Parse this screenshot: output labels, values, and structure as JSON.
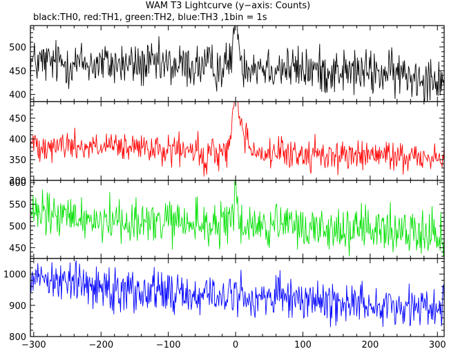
{
  "title": "WAM T3 Lightcurve (y−axis: Counts)",
  "subtitle": "black:TH0, red:TH1, green:TH2, blue:TH3 ,1bin = 1s",
  "chart_data": [
    {
      "type": "line",
      "name": "TH0",
      "color": "#000000",
      "xlim": [
        -305,
        310
      ],
      "ylim": [
        385,
        545
      ],
      "xticks": [
        -300,
        -200,
        -100,
        0,
        100,
        200,
        300
      ],
      "yticks": [
        400,
        450,
        500
      ],
      "ytick_labels": [
        "400",
        "450",
        "500"
      ],
      "baseline": [
        [
          -300,
          468
        ],
        [
          -150,
          462
        ],
        [
          -20,
          458
        ],
        [
          0,
          466
        ],
        [
          100,
          452
        ],
        [
          200,
          446
        ],
        [
          310,
          436
        ]
      ],
      "noise_amplitude": 24,
      "features": [
        {
          "x": 0,
          "y": 536,
          "width_s": 4
        },
        {
          "x": 1,
          "y": 545,
          "width_s": 2
        }
      ]
    },
    {
      "type": "line",
      "name": "TH1",
      "color": "#ff0000",
      "xlim": [
        -305,
        310
      ],
      "ylim": [
        300,
        490
      ],
      "xticks": [
        -300,
        -200,
        -100,
        0,
        100,
        200,
        300
      ],
      "yticks": [
        300,
        350,
        400,
        450
      ],
      "ytick_labels": [
        "300",
        "350",
        "400",
        "450"
      ],
      "baseline": [
        [
          -300,
          388
        ],
        [
          -200,
          380
        ],
        [
          -100,
          372
        ],
        [
          0,
          366
        ],
        [
          100,
          362
        ],
        [
          200,
          360
        ],
        [
          310,
          356
        ]
      ],
      "noise_amplitude": 18,
      "features": [
        {
          "x": 0,
          "y": 485,
          "width_s": 4
        },
        {
          "x": 8,
          "y": 420,
          "width_s": 10
        },
        {
          "x": -45,
          "y": 318,
          "width_s": 2
        }
      ]
    },
    {
      "type": "line",
      "name": "TH2",
      "color": "#00e000",
      "xlim": [
        -305,
        310
      ],
      "ylim": [
        425,
        605
      ],
      "xticks": [
        -300,
        -200,
        -100,
        0,
        100,
        200,
        300
      ],
      "yticks": [
        450,
        500,
        550,
        600
      ],
      "ytick_labels": [
        "450",
        "500",
        "550",
        "600"
      ],
      "baseline": [
        [
          -300,
          525
        ],
        [
          -200,
          515
        ],
        [
          -100,
          506
        ],
        [
          0,
          502
        ],
        [
          100,
          496
        ],
        [
          200,
          490
        ],
        [
          310,
          486
        ]
      ],
      "noise_amplitude": 26,
      "features": [
        {
          "x": 0,
          "y": 605,
          "width_s": 2
        }
      ]
    },
    {
      "type": "line",
      "name": "TH3",
      "color": "#0000ff",
      "xlim": [
        -305,
        310
      ],
      "ylim": [
        800,
        1050
      ],
      "xticks": [
        -300,
        -200,
        -100,
        0,
        100,
        200,
        300
      ],
      "xtick_labels": [
        "−300",
        "−200",
        "−100",
        "0",
        "100",
        "200",
        "300"
      ],
      "yticks": [
        800,
        900,
        1000
      ],
      "ytick_labels": [
        "800",
        "900",
        "1000"
      ],
      "baseline": [
        [
          -300,
          1000
        ],
        [
          -250,
          975
        ],
        [
          -150,
          950
        ],
        [
          -50,
          932
        ],
        [
          0,
          930
        ],
        [
          100,
          918
        ],
        [
          200,
          905
        ],
        [
          300,
          892
        ],
        [
          310,
          900
        ]
      ],
      "noise_amplitude": 34,
      "features": []
    }
  ]
}
